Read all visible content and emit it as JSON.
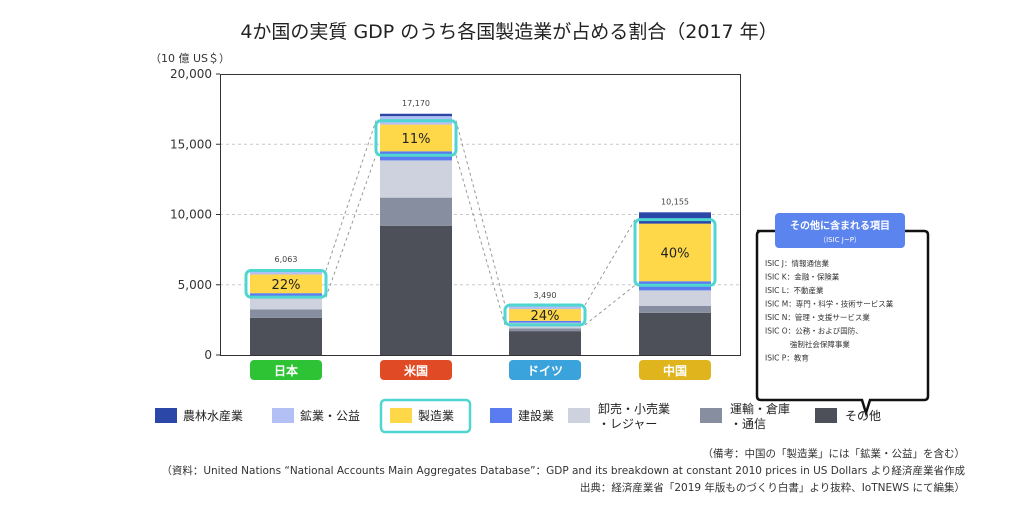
{
  "chart_data": {
    "type": "bar",
    "stacked": true,
    "title": "4か国の実質 GDP のうち各国製造業が占める割合（2017 年）",
    "ylabel": "（10 億 US＄）",
    "xlabel": "",
    "ylim": [
      0,
      20000
    ],
    "yticks": [
      0,
      5000,
      10000,
      15000,
      20000
    ],
    "ytick_labels": [
      "0",
      "5,000",
      "10,000",
      "15,000",
      "20,000"
    ],
    "grid": true,
    "categories": [
      "日本",
      "米国",
      "ドイツ",
      "中国"
    ],
    "category_colors": [
      "#2ec235",
      "#e04b26",
      "#3aa3dc",
      "#e0b41c"
    ],
    "totals": [
      6063,
      17170,
      3490,
      10155
    ],
    "total_labels": [
      "6,063",
      "17,170",
      "3,490",
      "10,155"
    ],
    "manufacturing_share_labels": [
      "22%",
      "11%",
      "24%",
      "40%"
    ],
    "series": [
      {
        "name": "その他",
        "color": "#4d5059",
        "values": [
          2650,
          9200,
          1700,
          3000
        ]
      },
      {
        "name": "運輸・倉庫・通信",
        "color": "#868ea0",
        "values": [
          600,
          2000,
          200,
          500
        ]
      },
      {
        "name": "卸売・小売業・レジャー",
        "color": "#cdd2de",
        "values": [
          900,
          2650,
          400,
          1100
        ]
      },
      {
        "name": "建設業",
        "color": "#5b7cf0",
        "values": [
          250,
          650,
          130,
          650
        ]
      },
      {
        "name": "製造業",
        "color": "#ffd84a",
        "values": [
          1330,
          1900,
          840,
          4100
        ]
      },
      {
        "name": "鉱業・公益",
        "color": "#b3c0f5",
        "values": [
          273,
          600,
          180,
          0
        ]
      },
      {
        "name": "農林水産業",
        "color": "#2b47a8",
        "values": [
          60,
          170,
          40,
          805
        ]
      }
    ],
    "legend": {
      "placement": "bottom",
      "order": [
        "農林水産業",
        "鉱業・公益",
        "製造業",
        "建設業",
        "卸売・小売業・レジャー",
        "運輸・倉庫・通信",
        "その他"
      ],
      "labels": [
        [
          "農林水産業"
        ],
        [
          "鉱業・公益"
        ],
        [
          "製造業"
        ],
        [
          "建設業"
        ],
        [
          "卸売・小売業",
          "・レジャー"
        ],
        [
          "運輸・倉庫",
          "・通信"
        ],
        [
          "その他"
        ]
      ],
      "highlighted": "製造業"
    },
    "highlight_color": "#4fd6d0",
    "callout": {
      "title": "その他に含まれる項目",
      "subtitle": "（ISIC J~P）",
      "header_color": "#5b84ee",
      "items": [
        "ISIC J：情報通信業",
        "ISIC K：金融・保険業",
        "ISIC L：不動産業",
        "ISIC M：専門・科学・技術サービス業",
        "ISIC N：管理・支援サービス業",
        "ISIC O：公務・および国防、",
        "　　　 強制社会保障事業",
        "ISIC P：教育"
      ]
    }
  },
  "notes": [
    "（備考：中国の「製造業」には「鉱業・公益」を含む）",
    "（資料：United Nations “National Accounts Main Aggregates Database”：GDP and its breakdown at constant 2010 prices in US Dollars より経済産業省作成",
    "出典：経済産業省「2019 年版ものづくり白書」より抜粋、IoTNEWS にて編集）"
  ]
}
